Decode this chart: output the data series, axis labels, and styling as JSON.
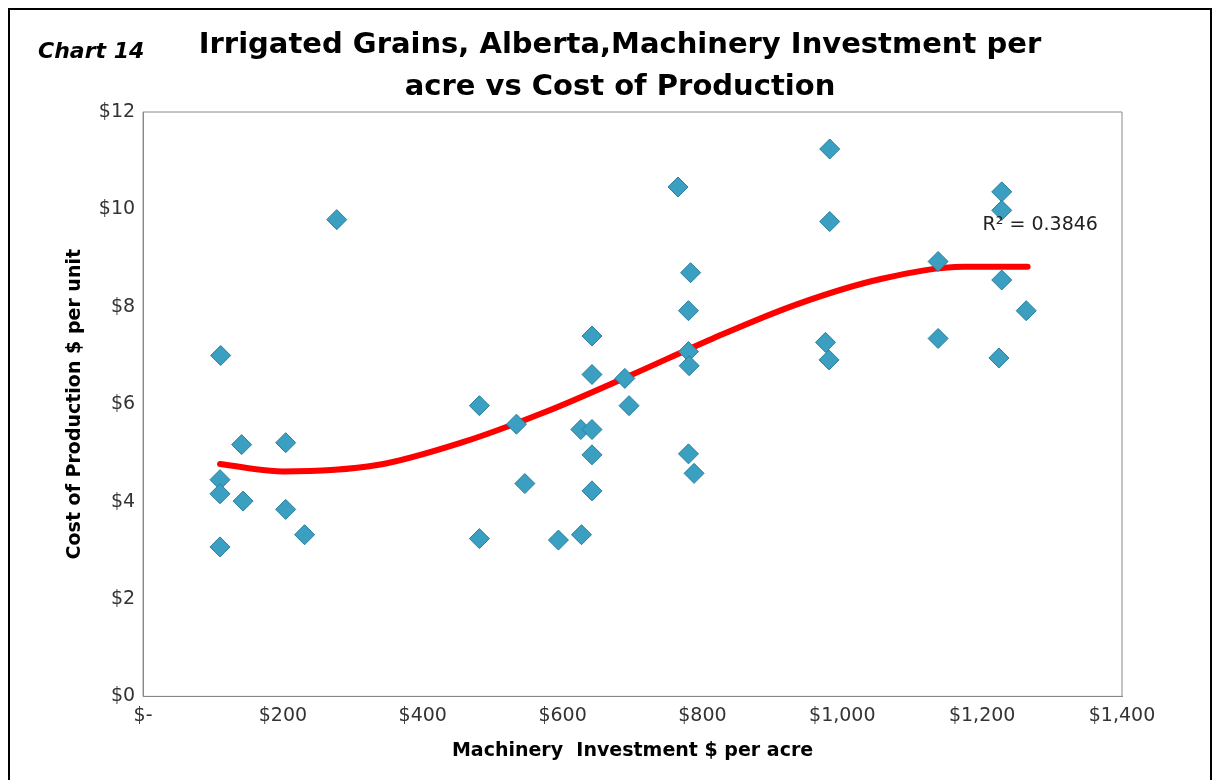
{
  "chart_data": {
    "type": "scatter",
    "title": "Irrigated Grains, Alberta,Machinery Investment per acre vs Cost of Production",
    "xlabel": "Machinery  Investment $ per acre",
    "ylabel": "Cost of Production $ per unit",
    "annotations": [
      "Chart  14",
      "R² = 0.3846"
    ],
    "marker": "diamond",
    "xlim": [
      0,
      1400
    ],
    "xticks": [
      {
        "value": 0,
        "label": "$-"
      },
      {
        "value": 200,
        "label": "$200"
      },
      {
        "value": 400,
        "label": "$400"
      },
      {
        "value": 600,
        "label": "$600"
      },
      {
        "value": 800,
        "label": "$800"
      },
      {
        "value": 1000,
        "label": "$1,000"
      },
      {
        "value": 1200,
        "label": "$1,200"
      },
      {
        "value": 1400,
        "label": "$1,400"
      }
    ],
    "ylim": [
      0,
      12
    ],
    "yticks": [
      {
        "value": 0,
        "label": "$0"
      },
      {
        "value": 2,
        "label": "$2"
      },
      {
        "value": 4,
        "label": "$4"
      },
      {
        "value": 6,
        "label": "$6"
      },
      {
        "value": 8,
        "label": "$8"
      },
      {
        "value": 10,
        "label": "$10"
      },
      {
        "value": 12,
        "label": "$12"
      }
    ],
    "series": [
      {
        "color": "#3a9fc0",
        "x": [
          111,
          141,
          204,
          110,
          110,
          143,
          204,
          231,
          110,
          277,
          481,
          534,
          546,
          481,
          594,
          627,
          642,
          642,
          689,
          695,
          626,
          642,
          642,
          642,
          765,
          982,
          1228,
          1228,
          982,
          1137,
          783,
          1228,
          780,
          1263,
          976,
          1137,
          981,
          1224,
          780,
          781,
          780,
          788
        ],
        "values": [
          7.0,
          5.17,
          5.21,
          4.45,
          4.16,
          4.01,
          3.84,
          3.32,
          3.07,
          9.79,
          5.97,
          5.59,
          4.37,
          3.24,
          3.21,
          3.32,
          7.4,
          6.61,
          6.53,
          5.97,
          5.48,
          5.48,
          4.96,
          4.22,
          10.46,
          11.24,
          10.36,
          9.98,
          9.75,
          8.93,
          8.7,
          8.55,
          7.92,
          7.92,
          7.27,
          7.35,
          6.91,
          6.95,
          7.08,
          6.79,
          4.98,
          4.58
        ]
      },
      {
        "type": "line",
        "color": "#ff0000",
        "marker": "none",
        "x": [
          110,
          200,
          335,
          455,
          575,
          695,
          815,
          935,
          1055,
          1175,
          1265
        ],
        "values": [
          4.77,
          4.62,
          4.75,
          5.21,
          5.84,
          6.58,
          7.35,
          8.05,
          8.57,
          8.82,
          8.82
        ]
      }
    ]
  }
}
